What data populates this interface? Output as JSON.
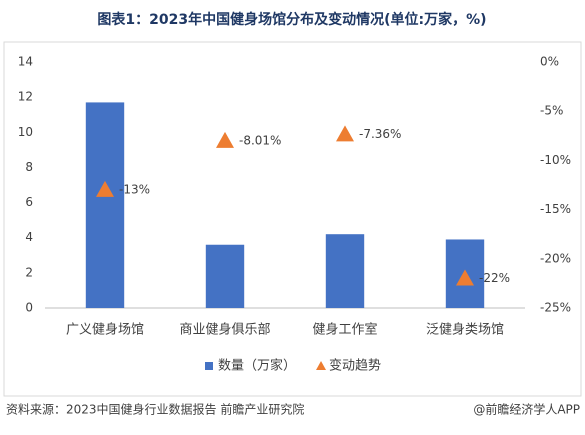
{
  "chart_data": {
    "type": "bar",
    "title": "图表1：2023年中国健身场馆分布及变动情况(单位:万家，%)",
    "categories": [
      "广义健身场馆",
      "商业健身俱乐部",
      "健身工作室",
      "泛健身类场馆"
    ],
    "series": [
      {
        "name": "数量（万家）",
        "color": "#4472c4",
        "values": [
          11.7,
          3.6,
          4.2,
          3.9
        ]
      },
      {
        "name": "变动趋势",
        "color": "#ed7d31",
        "axis": "y2",
        "marker": "triangle",
        "values": [
          -13,
          -8.01,
          -7.36,
          -22
        ],
        "value_labels": [
          "-13%",
          "-8.01%",
          "-7.36%",
          "-22%"
        ]
      }
    ],
    "ylim": [
      0,
      14
    ],
    "yticks": [
      0,
      2,
      4,
      6,
      8,
      10,
      12,
      14
    ],
    "y2lim": [
      -25,
      0
    ],
    "y2ticks": [
      {
        "value": -25,
        "label": "-25%"
      },
      {
        "value": -20,
        "label": "-20%"
      },
      {
        "value": -15,
        "label": "-15%"
      },
      {
        "value": -10,
        "label": "-10%"
      },
      {
        "value": -5,
        "label": "-5%"
      },
      {
        "value": 0,
        "label": "0%"
      }
    ],
    "grid": false,
    "legend": "bottom",
    "source": "资料来源：2023中国健身行业数据报告 前瞻产业研究院",
    "credit": "@前瞻经济学人APP"
  }
}
